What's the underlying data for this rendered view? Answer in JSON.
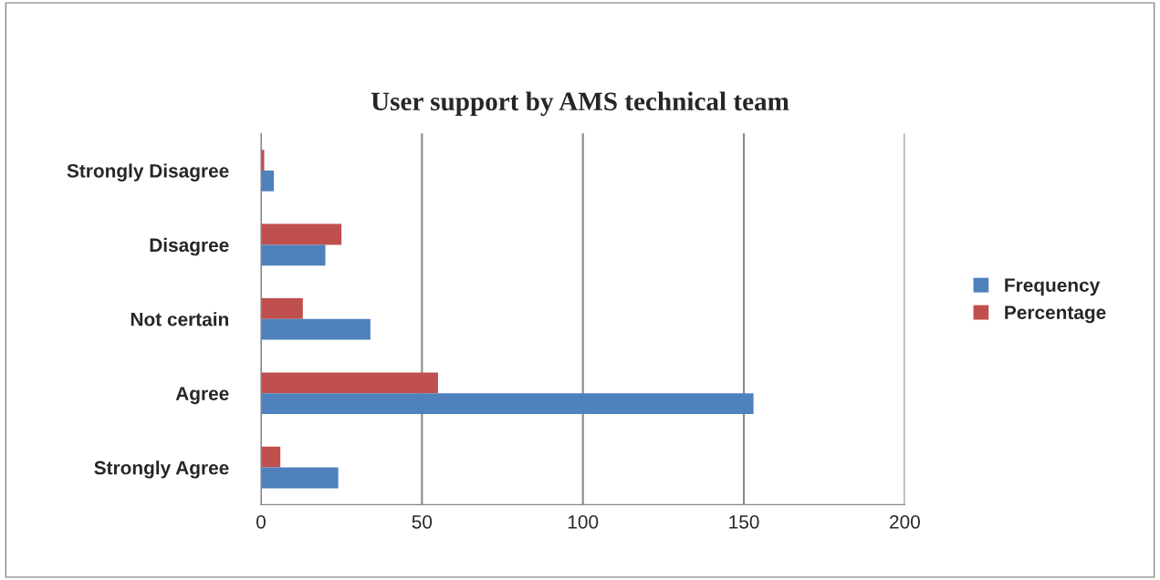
{
  "chart_data": {
    "type": "bar",
    "orientation": "horizontal",
    "title": "User support by AMS technical team",
    "categories": [
      "Strongly Disagree",
      "Disagree",
      "Not certain",
      "Agree",
      "Strongly Agree"
    ],
    "series": [
      {
        "name": "Percentage",
        "color": "#c0504d",
        "values": [
          1,
          25,
          13,
          55,
          6
        ]
      },
      {
        "name": "Frequency",
        "color": "#4f81bd",
        "values": [
          4,
          20,
          34,
          153,
          24
        ]
      }
    ],
    "xlim": [
      0,
      200
    ],
    "xticks": [
      0,
      50,
      100,
      150,
      200
    ],
    "grid": "x",
    "legend": "right"
  }
}
